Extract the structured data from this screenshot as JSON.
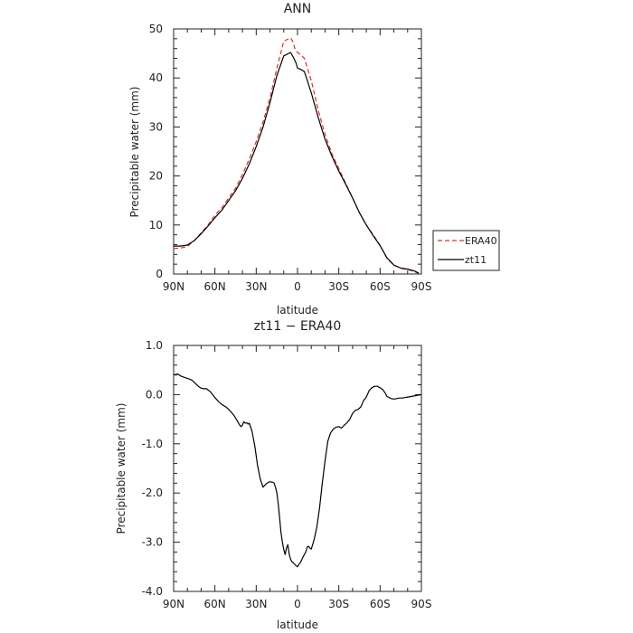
{
  "chart_data": [
    {
      "type": "line",
      "title": "ANN",
      "xlabel": "latitude",
      "ylabel": "Precipitable water  (mm)",
      "x_ticks": [
        "90N",
        "60N",
        "30N",
        "0",
        "30S",
        "60S",
        "90S"
      ],
      "y_ticks": [
        "0",
        "10",
        "20",
        "30",
        "40",
        "50"
      ],
      "xlim": [
        90,
        -90
      ],
      "ylim": [
        0,
        50
      ],
      "grid": false,
      "legend": "right",
      "colors": {
        "ERA40": "#d93030",
        "zt11": "#000000"
      },
      "series": [
        {
          "name": "ERA40",
          "style": "dashed",
          "x": [
            90,
            85,
            80,
            75,
            70,
            65,
            60,
            55,
            50,
            45,
            40,
            35,
            30,
            25,
            20,
            15,
            10,
            5,
            3,
            2,
            0,
            -2,
            -5,
            -10,
            -15,
            -20,
            -25,
            -30,
            -35,
            -40,
            -45,
            -50,
            -55,
            -60,
            -65,
            -70,
            -75,
            -80,
            -85,
            -88
          ],
          "y": [
            5.2,
            5.3,
            5.6,
            6.8,
            8.4,
            10,
            12,
            13.5,
            15.5,
            17.5,
            20.3,
            23.5,
            27,
            31,
            36,
            42,
            47.5,
            48.2,
            47.2,
            46,
            45.2,
            44.8,
            44,
            39.5,
            33.5,
            28.5,
            24.5,
            21.5,
            18.5,
            15.5,
            12.5,
            10,
            8,
            5.8,
            3.2,
            1.8,
            1.2,
            0.9,
            0.5,
            0.1
          ]
        },
        {
          "name": "zt11",
          "style": "solid",
          "x": [
            90,
            85,
            80,
            75,
            70,
            65,
            60,
            55,
            50,
            45,
            40,
            35,
            30,
            25,
            20,
            15,
            10,
            5,
            3,
            1,
            0,
            -2,
            -5,
            -10,
            -15,
            -20,
            -25,
            -30,
            -35,
            -40,
            -45,
            -50,
            -55,
            -60,
            -65,
            -70,
            -75,
            -80,
            -85,
            -88
          ],
          "y": [
            5.7,
            5.7,
            5.9,
            6.8,
            8.2,
            9.8,
            11.5,
            13,
            15,
            17,
            19.5,
            22.5,
            26,
            30,
            35,
            40.5,
            44.5,
            45.2,
            44.2,
            43,
            42,
            41.8,
            41.3,
            37,
            32,
            27.5,
            24,
            21,
            18.3,
            15.5,
            12.5,
            10,
            7.8,
            5.8,
            3.3,
            1.8,
            1.2,
            1,
            0.6,
            0.2
          ]
        }
      ]
    },
    {
      "type": "line",
      "title": "zt11 − ERA40",
      "xlabel": "latitude",
      "ylabel": "Precipitable water  (mm)",
      "x_ticks": [
        "90N",
        "60N",
        "30N",
        "0",
        "30S",
        "60S",
        "90S"
      ],
      "y_ticks": [
        "1.0",
        "0.0",
        "-1.0",
        "-2.0",
        "-3.0",
        "-4.0"
      ],
      "xlim": [
        90,
        -90
      ],
      "ylim": [
        -4,
        1
      ],
      "grid": false,
      "colors": {
        "line": "#000000"
      },
      "series": [
        {
          "x": [
            90,
            87,
            85,
            82,
            80,
            77,
            75,
            72,
            70,
            68,
            66,
            63,
            60,
            57,
            55,
            52,
            50,
            48,
            46,
            44,
            43,
            42,
            41,
            40,
            39,
            38,
            37,
            36,
            35,
            33,
            31,
            29,
            27,
            25,
            23,
            21,
            20,
            19,
            18,
            17,
            16,
            15,
            14,
            13,
            12,
            11,
            10,
            9,
            8,
            7,
            6,
            5,
            4,
            3,
            2,
            1,
            0,
            -1,
            -2,
            -3,
            -4,
            -5,
            -6,
            -7,
            -8,
            -9,
            -10,
            -11,
            -12,
            -14,
            -16,
            -18,
            -20,
            -22,
            -24,
            -26,
            -28,
            -30,
            -32,
            -34,
            -36,
            -38,
            -40,
            -42,
            -44,
            -46,
            -48,
            -50,
            -52,
            -54,
            -56,
            -58,
            -60,
            -62,
            -64,
            -65,
            -66,
            -68,
            -70,
            -72,
            -74,
            -76,
            -78,
            -80,
            -82,
            -84,
            -86,
            -88,
            -90
          ],
          "y": [
            0.4,
            0.42,
            0.38,
            0.35,
            0.33,
            0.3,
            0.25,
            0.17,
            0.13,
            0.12,
            0.12,
            0.05,
            -0.06,
            -0.15,
            -0.2,
            -0.25,
            -0.3,
            -0.36,
            -0.43,
            -0.52,
            -0.57,
            -0.62,
            -0.65,
            -0.62,
            -0.55,
            -0.58,
            -0.57,
            -0.6,
            -0.58,
            -0.75,
            -1.05,
            -1.45,
            -1.72,
            -1.88,
            -1.82,
            -1.78,
            -1.77,
            -1.78,
            -1.78,
            -1.8,
            -1.88,
            -2.0,
            -2.22,
            -2.5,
            -2.8,
            -3.0,
            -3.15,
            -3.25,
            -3.12,
            -3.05,
            -3.25,
            -3.35,
            -3.4,
            -3.42,
            -3.45,
            -3.48,
            -3.5,
            -3.45,
            -3.42,
            -3.36,
            -3.3,
            -3.25,
            -3.2,
            -3.1,
            -3.08,
            -3.12,
            -3.14,
            -3.05,
            -2.95,
            -2.7,
            -2.3,
            -1.8,
            -1.35,
            -0.95,
            -0.78,
            -0.7,
            -0.66,
            -0.65,
            -0.68,
            -0.62,
            -0.57,
            -0.5,
            -0.38,
            -0.32,
            -0.3,
            -0.25,
            -0.12,
            -0.05,
            0.08,
            0.14,
            0.17,
            0.17,
            0.14,
            0.1,
            0.02,
            -0.04,
            -0.05,
            -0.08,
            -0.09,
            -0.08,
            -0.07,
            -0.07,
            -0.06,
            -0.05,
            -0.04,
            -0.03,
            -0.02,
            -0.01,
            0.0
          ]
        }
      ]
    }
  ]
}
